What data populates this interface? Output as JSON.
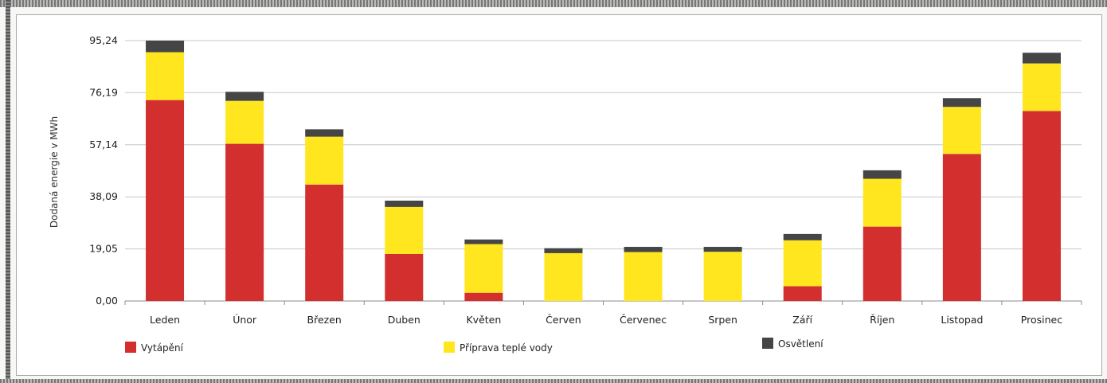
{
  "chart_data": {
    "type": "bar",
    "stacked": true,
    "title": "",
    "xlabel": "",
    "ylabel": "Dodaná energie v MWh",
    "ylim": [
      0,
      95.24
    ],
    "yticks": [
      "0,00",
      "19,05",
      "38,09",
      "57,14",
      "76,19",
      "95,24"
    ],
    "categories": [
      "Leden",
      "Únor",
      "Březen",
      "Duben",
      "Květen",
      "Červen",
      "Červenec",
      "Srpen",
      "Září",
      "Říjen",
      "Listopad",
      "Prosinec"
    ],
    "series": [
      {
        "name": "Vytápění",
        "color": "#d32f2f",
        "values": [
          73.5,
          57.5,
          42.6,
          17.2,
          3.0,
          0,
          0,
          0,
          5.4,
          27.2,
          53.8,
          69.5
        ]
      },
      {
        "name": "Příprava teplé vody",
        "color": "#ffe61e",
        "values": [
          17.5,
          15.7,
          17.5,
          17.2,
          17.8,
          17.5,
          17.9,
          18.0,
          16.8,
          17.5,
          17.2,
          17.4
        ]
      },
      {
        "name": "Osvětlení",
        "color": "#454545",
        "values": [
          4.24,
          3.3,
          2.7,
          2.3,
          1.7,
          1.8,
          1.9,
          1.8,
          2.3,
          3.1,
          3.2,
          3.9
        ]
      }
    ],
    "grid": true,
    "legend_position": "bottom"
  }
}
